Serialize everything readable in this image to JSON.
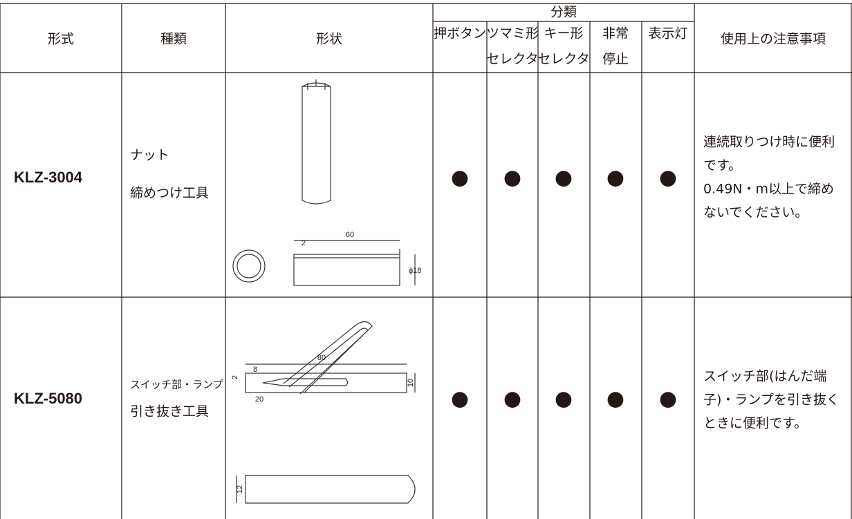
{
  "header": {
    "model": "形式",
    "kind": "種類",
    "shape": "形状",
    "classification": "分類",
    "sub": [
      [
        "押ボタン"
      ],
      [
        "ツマミ形",
        "セレクタ"
      ],
      [
        "キー形",
        "セレクタ"
      ],
      [
        "非常",
        "停止"
      ],
      [
        "表示灯"
      ]
    ],
    "notes": "使用上の注意事項"
  },
  "rows": [
    {
      "model": "KLZ-3004",
      "kind": [
        "ナット",
        "締めつけ工具"
      ],
      "dimensions": [
        "60",
        "2",
        "ϕ18"
      ],
      "marks": [
        "●",
        "●",
        "●",
        "●",
        "●"
      ],
      "notes": [
        "連続取りつけ時に便利",
        "です。",
        "0.49N・m以上で締め",
        "ないでください。"
      ]
    },
    {
      "model": "KLZ-5080",
      "kind": [
        "スイッチ部・ランプ",
        "引き抜き工具"
      ],
      "dimensions": [
        "80",
        "8",
        "2",
        "20",
        "10",
        "12"
      ],
      "marks": [
        "●",
        "●",
        "●",
        "●",
        "●"
      ],
      "notes": [
        "スイッチ部(はんだ端",
        "子)・ランプを引き抜く",
        "ときに便利です。"
      ]
    }
  ]
}
